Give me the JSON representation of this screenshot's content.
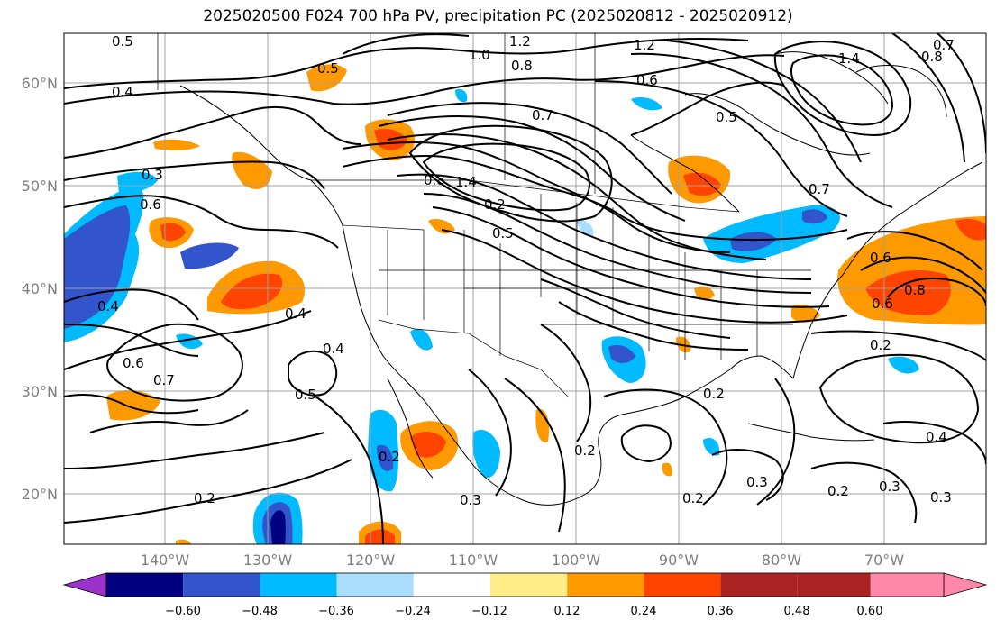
{
  "title": "2025020500 F024 700 hPa PV, precipitation PC (2025020812 - 2025020912)",
  "latitude_labels": [
    "60°N",
    "50°N",
    "40°N",
    "30°N",
    "20°N"
  ],
  "longitude_labels": [
    "140°W",
    "130°W",
    "120°W",
    "110°W",
    "100°W",
    "90°W",
    "80°W",
    "70°W"
  ],
  "colorbar": {
    "colors": [
      "#9933cc",
      "#000080",
      "#3355cc",
      "#00bbff",
      "#aaddff",
      "#ffffff",
      "#ffee88",
      "#ff9900",
      "#ff4400",
      "#aa2222",
      "#ff88aa"
    ],
    "tick_labels": [
      "−0.60",
      "−0.48",
      "−0.36",
      "−0.24",
      "−0.12",
      "0.12",
      "0.24",
      "0.36",
      "0.48",
      "0.60"
    ]
  },
  "contour_labels": [
    {
      "text": "0.5"
    },
    {
      "text": "1.2"
    },
    {
      "text": "1.2"
    },
    {
      "text": "0.7"
    },
    {
      "text": "0.8"
    },
    {
      "text": "1.0"
    },
    {
      "text": "0.8"
    },
    {
      "text": "0.4"
    },
    {
      "text": "0.5"
    },
    {
      "text": "0.6"
    },
    {
      "text": "1.4"
    },
    {
      "text": "0.5"
    },
    {
      "text": "0.7"
    },
    {
      "text": "0.3"
    },
    {
      "text": "0.6"
    },
    {
      "text": "0.8"
    },
    {
      "text": "1.4"
    },
    {
      "text": "0.2"
    },
    {
      "text": "0.5"
    },
    {
      "text": "0.7"
    },
    {
      "text": "0.6"
    },
    {
      "text": "0.8"
    },
    {
      "text": "0.6"
    },
    {
      "text": "0.4"
    },
    {
      "text": "0.4"
    },
    {
      "text": "0.4"
    },
    {
      "text": "0.6"
    },
    {
      "text": "0.7"
    },
    {
      "text": "0.5"
    },
    {
      "text": "0.2"
    },
    {
      "text": "0.2"
    },
    {
      "text": "0.4"
    },
    {
      "text": "0.2"
    },
    {
      "text": "0.3"
    },
    {
      "text": "0.2"
    },
    {
      "text": "0.2"
    },
    {
      "text": "0.2"
    },
    {
      "text": "0.3"
    },
    {
      "text": "0.3"
    },
    {
      "text": "0.2"
    },
    {
      "text": "0.3"
    }
  ]
}
